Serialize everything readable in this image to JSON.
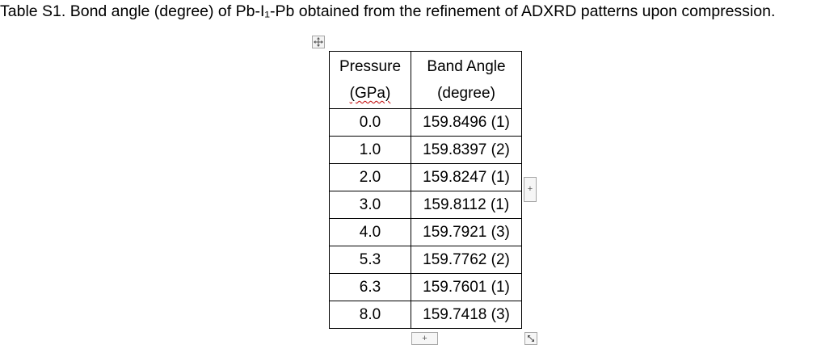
{
  "caption": "Table S1. Bond angle (degree) of Pb-I₁-Pb obtained from the refinement of ADXRD patterns upon compression.",
  "table": {
    "headers": {
      "pressure_line1": "Pressure",
      "pressure_line2": "(GPa)",
      "angle_line1": "Band Angle",
      "angle_line2": "(degree)"
    },
    "rows": [
      {
        "pressure": "0.0",
        "angle": "159.8496 (1)"
      },
      {
        "pressure": "1.0",
        "angle": "159.8397 (2)"
      },
      {
        "pressure": "2.0",
        "angle": "159.8247 (1)"
      },
      {
        "pressure": "3.0",
        "angle": "159.8112 (1)"
      },
      {
        "pressure": "4.0",
        "angle": "159.7921 (3)"
      },
      {
        "pressure": "5.3",
        "angle": "159.7762 (2)"
      },
      {
        "pressure": "6.3",
        "angle": "159.7601 (1)"
      },
      {
        "pressure": "8.0",
        "angle": "159.7418 (3)"
      }
    ]
  },
  "controls": {
    "add_column_icon": "plus-icon",
    "add_row_icon": "plus-icon",
    "add_glyph": "+",
    "move_icon": "move-arrows-icon",
    "resize_icon": "diagonal-resize-icon"
  }
}
